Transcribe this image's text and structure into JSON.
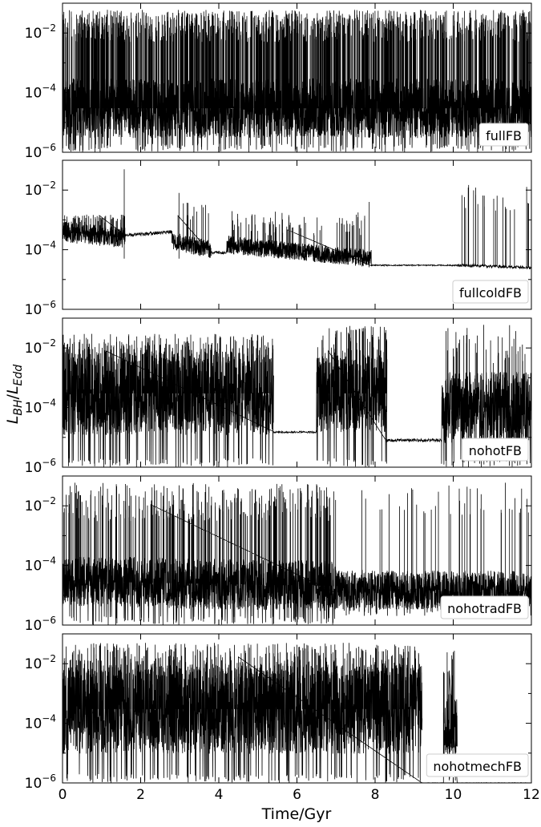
{
  "chart_data": {
    "type": "line",
    "layout": "5 vertically stacked panels sharing the x axis",
    "xlabel": "Time/Gyr",
    "ylabel": "L_BH/L_Edd",
    "ylabel_parts": {
      "main1": "L",
      "sub1": "BH",
      "slash": "/",
      "main2": "L",
      "sub2": "Edd"
    },
    "xlim": [
      0,
      12
    ],
    "ylim": [
      1e-06,
      0.1
    ],
    "yscale": "log",
    "x_ticks": [
      0,
      2,
      4,
      6,
      8,
      10,
      12
    ],
    "x_tick_labels": [
      "0",
      "2",
      "4",
      "6",
      "8",
      "10",
      "12"
    ],
    "y_ticks": [
      1e-06,
      0.0001,
      0.01
    ],
    "y_tick_base": "10",
    "y_tick_exponents": [
      "−6",
      "−4",
      "−2"
    ],
    "line_color": "#000000",
    "legend_placement": "lower-right",
    "panels": [
      {
        "name": "fullFB",
        "segments": [
          {
            "x": [
              0,
              12
            ],
            "base": [
              3e-05,
              3e-05
            ],
            "spread_dex": 1.0,
            "spikes_per_gyr": 90,
            "spike_to": [
              0.005,
              0.06
            ],
            "dip_to": 1e-06
          }
        ]
      },
      {
        "name": "fullcoldFB",
        "segments": [
          {
            "x": [
              0,
              1.6
            ],
            "base": [
              0.0004,
              0.00025
            ],
            "spread_dex": 0.35,
            "spikes_per_gyr": 40,
            "spike_to": [
              0.0008,
              0.0015
            ],
            "dip_to": 0.0002
          },
          {
            "x": [
              1.6,
              2.8
            ],
            "base": [
              0.0003,
              0.0004
            ],
            "spread_dex": 0.06,
            "spikes_per_gyr": 0,
            "spike_to": [
              0.0004,
              0.0005
            ],
            "dip_to": 0.0003
          },
          {
            "x": [
              2.8,
              3.8
            ],
            "base": [
              0.0002,
              0.0001
            ],
            "spread_dex": 0.3,
            "spikes_per_gyr": 14,
            "spike_to": [
              0.0007,
              0.004
            ],
            "dip_to": 0.0001
          },
          {
            "x": [
              3.8,
              4.2
            ],
            "base": [
              8e-05,
              8e-05
            ],
            "spread_dex": 0.05,
            "spikes_per_gyr": 0,
            "spike_to": [
              0.0001,
              0.0001
            ],
            "dip_to": 8e-05
          },
          {
            "x": [
              4.2,
              7.9
            ],
            "base": [
              0.00015,
              5e-05
            ],
            "spread_dex": 0.3,
            "spikes_per_gyr": 22,
            "spike_to": [
              0.0003,
              0.002
            ],
            "dip_to": 5e-05
          },
          {
            "x": [
              7.9,
              10.1
            ],
            "base": [
              3e-05,
              3e-05
            ],
            "spread_dex": 0.02,
            "spikes_per_gyr": 0,
            "spike_to": [
              3e-05,
              3e-05
            ],
            "dip_to": 3e-05
          },
          {
            "x": [
              10.1,
              12
            ],
            "base": [
              3e-05,
              2.5e-05
            ],
            "spread_dex": 0.05,
            "spikes_per_gyr": 12,
            "spike_to": [
              0.002,
              0.015
            ],
            "dip_to": 2.5e-05
          }
        ],
        "spikes": [
          {
            "x": 1.58,
            "y": 0.05
          },
          {
            "x": 2.98,
            "y": 0.008
          },
          {
            "x": 7.85,
            "y": 0.004
          },
          {
            "x": 12.0,
            "y": 0.012
          }
        ]
      },
      {
        "name": "nohotFB",
        "segments": [
          {
            "x": [
              0,
              5.4
            ],
            "base": [
              0.0003,
              0.0003
            ],
            "spread_dex": 1.4,
            "spikes_per_gyr": 55,
            "spike_to": [
              0.003,
              0.03
            ],
            "dip_to": 1e-06
          },
          {
            "x": [
              5.4,
              6.5
            ],
            "base": [
              1.5e-05,
              1.5e-05
            ],
            "spread_dex": 0.03,
            "spikes_per_gyr": 0,
            "spike_to": [
              1.5e-05,
              1.5e-05
            ],
            "dip_to": 1.5e-05
          },
          {
            "x": [
              6.5,
              8.3
            ],
            "base": [
              0.0003,
              0.0003
            ],
            "spread_dex": 1.3,
            "spikes_per_gyr": 50,
            "spike_to": [
              0.003,
              0.06
            ],
            "dip_to": 1e-06
          },
          {
            "x": [
              8.3,
              9.7
            ],
            "base": [
              8e-06,
              8e-06
            ],
            "spread_dex": 0.05,
            "spikes_per_gyr": 0,
            "spike_to": [
              8e-06,
              8e-06
            ],
            "dip_to": 8e-06
          },
          {
            "x": [
              9.7,
              12
            ],
            "base": [
              0.0001,
              0.0001
            ],
            "spread_dex": 1.2,
            "spikes_per_gyr": 20,
            "spike_to": [
              0.003,
              0.06
            ],
            "dip_to": 1e-06
          }
        ]
      },
      {
        "name": "nohotradFB",
        "segments": [
          {
            "x": [
              0,
              7.0
            ],
            "base": [
              3e-05,
              2e-05
            ],
            "spread_dex": 0.85,
            "spikes_per_gyr": 40,
            "spike_to": [
              0.003,
              0.06
            ],
            "dip_to": 1e-06
          },
          {
            "x": [
              7.0,
              12
            ],
            "base": [
              1.5e-05,
              1.5e-05
            ],
            "spread_dex": 0.65,
            "spikes_per_gyr": 8,
            "spike_to": [
              0.005,
              0.06
            ],
            "dip_to": 2e-06
          }
        ]
      },
      {
        "name": "nohotmechFB",
        "segments": [
          {
            "x": [
              0,
              9.2
            ],
            "base": [
              0.0003,
              0.0003
            ],
            "spread_dex": 1.5,
            "spikes_per_gyr": 60,
            "spike_to": [
              0.003,
              0.05
            ],
            "dip_to": 1e-06
          },
          {
            "x": [
              9.2,
              9.75
            ],
            "base": [
              1e-06,
              1e-06
            ],
            "spread_dex": 0.01,
            "spikes_per_gyr": 0,
            "spike_to": [
              1e-06,
              1e-06
            ],
            "dip_to": 1e-06
          },
          {
            "x": [
              9.75,
              10.1
            ],
            "base": [
              0.0001,
              0.0001
            ],
            "spread_dex": 1.0,
            "spikes_per_gyr": 30,
            "spike_to": [
              0.002,
              0.03
            ],
            "dip_to": 1e-06
          },
          {
            "x": [
              10.1,
              12
            ],
            "base": [
              1e-06,
              1e-06
            ],
            "spread_dex": 0.01,
            "spikes_per_gyr": 0,
            "spike_to": [
              1e-06,
              1e-06
            ],
            "dip_to": 1e-06
          }
        ]
      }
    ]
  }
}
